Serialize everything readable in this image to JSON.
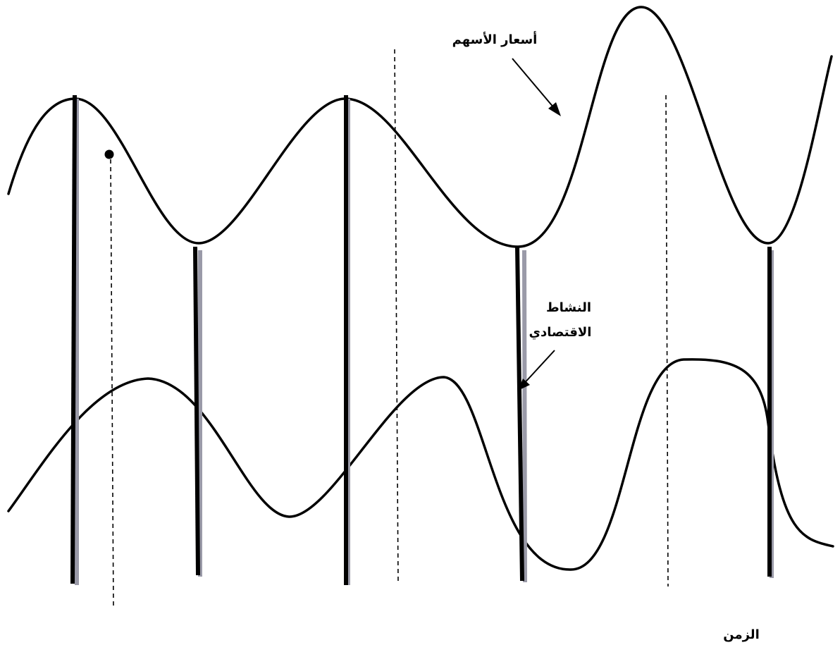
{
  "labels": {
    "stock_prices": "أسعار الأسهم",
    "economic_activity_line1": "النشاط",
    "economic_activity_line2": "الاقتصادي",
    "time": "الزمن"
  },
  "colors": {
    "curve": "#000000",
    "background": "#ffffff"
  }
}
